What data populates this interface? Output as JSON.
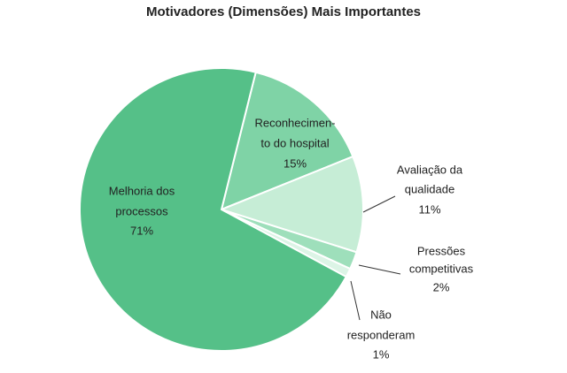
{
  "chart_data": {
    "type": "pie",
    "title": "Motivadores (Dimensões) Mais Importantes",
    "categories": [
      [
        "Reconhecimen-",
        "to do hospital"
      ],
      [
        "Avaliação da",
        "qualidade"
      ],
      [
        "Pressões",
        "competitivas"
      ],
      [
        "Não",
        "responderam"
      ],
      [
        "Melhoria dos",
        "processos"
      ]
    ],
    "values": [
      15,
      11,
      2,
      1,
      71
    ],
    "value_labels": [
      "15%",
      "11%",
      "2%",
      "1%",
      "71%"
    ],
    "colors": [
      "#7fd3a6",
      "#c6edd6",
      "#9edfbb",
      "#dcf4e6",
      "#55c088"
    ]
  }
}
